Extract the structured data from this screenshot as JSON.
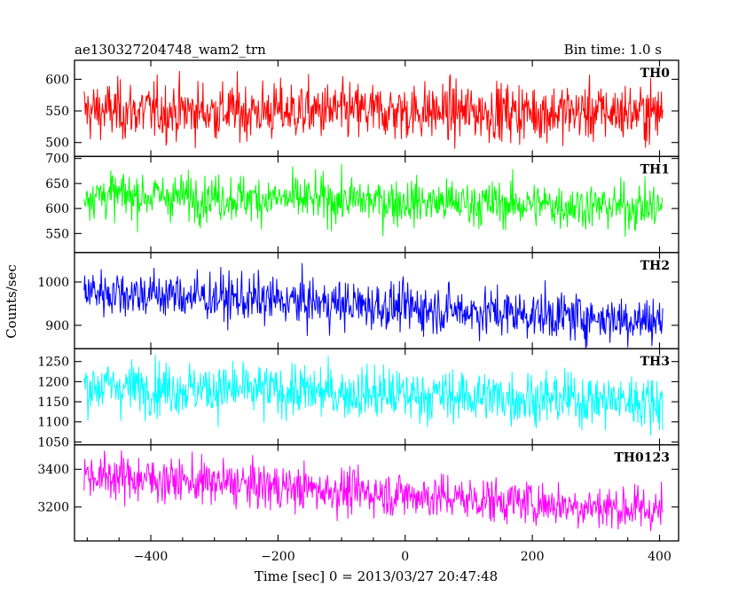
{
  "header": {
    "title": "ae130327204748_wam2_trn",
    "bin_time": "Bin time: 1.0 s"
  },
  "chart_data": {
    "type": "line",
    "xlabel": "Time [sec] 0 = 2013/03/27 20:47:48",
    "ylabel": "Counts/sec",
    "xlim": [
      -520,
      430
    ],
    "xticks": [
      -400,
      -200,
      0,
      200,
      400
    ],
    "x_range": [
      -505,
      405
    ],
    "bin_seconds": 1,
    "panels": [
      {
        "name": "TH0",
        "color": "#ff0000",
        "ylim": [
          478,
          630
        ],
        "yticks": [
          500,
          550,
          600
        ],
        "trend": [
          {
            "x": -505,
            "y": 550
          },
          {
            "x": 405,
            "y": 548
          }
        ],
        "noise_sd": 23
      },
      {
        "name": "TH1",
        "color": "#00ff00",
        "ylim": [
          512,
          704
        ],
        "yticks": [
          550,
          600,
          650,
          700
        ],
        "trend": [
          {
            "x": -505,
            "y": 628
          },
          {
            "x": 405,
            "y": 602
          }
        ],
        "noise_sd": 23
      },
      {
        "name": "TH2",
        "color": "#0000ff",
        "ylim": [
          846,
          1068
        ],
        "yticks": [
          900,
          1000
        ],
        "trend": [
          {
            "x": -505,
            "y": 980
          },
          {
            "x": 405,
            "y": 910
          }
        ],
        "noise_sd": 28
      },
      {
        "name": "TH3",
        "color": "#00ffff",
        "ylim": [
          1043,
          1282
        ],
        "yticks": [
          1050,
          1100,
          1150,
          1200,
          1250
        ],
        "trend": [
          {
            "x": -505,
            "y": 1190
          },
          {
            "x": 405,
            "y": 1150
          }
        ],
        "noise_sd": 33
      },
      {
        "name": "TH0123",
        "color": "#ff00ff",
        "ylim": [
          3020,
          3530
        ],
        "yticks": [
          3200,
          3400
        ],
        "trend": [
          {
            "x": -505,
            "y": 3370
          },
          {
            "x": 405,
            "y": 3180
          }
        ],
        "noise_sd": 60
      }
    ]
  }
}
